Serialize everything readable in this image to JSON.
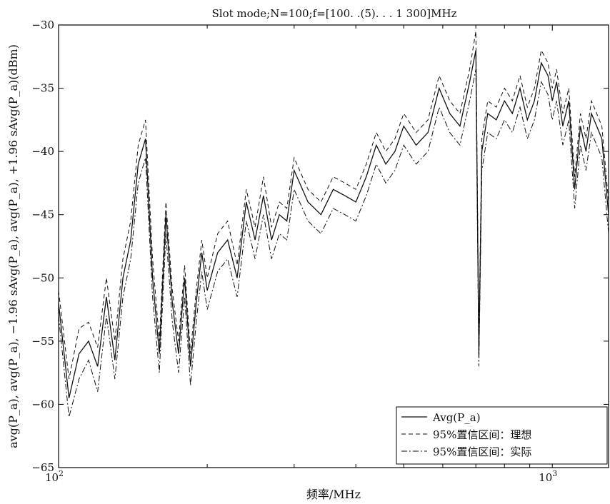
{
  "chart_data": {
    "type": "line",
    "title": "Slot mode;N=100;f=[100. .(5). . . 1 300]MHz",
    "xlabel": "频率/MHz",
    "ylabel": "avg(P_a), avg(P_a), −1.96 sAvg(P_a), avg(P_a), +1.96 sAvg(P_a)(dBm)",
    "xscale": "log",
    "xlim": [
      100,
      1300
    ],
    "ylim": [
      -65,
      -30
    ],
    "x_ticks": [
      {
        "value": 100,
        "base": "10",
        "exp": "2"
      },
      {
        "value": 1000,
        "base": "10",
        "exp": "3"
      }
    ],
    "y_ticks": [
      -30,
      -35,
      -40,
      -45,
      -50,
      -55,
      -60,
      -65
    ],
    "x": [
      100,
      105,
      110,
      115,
      120,
      125,
      130,
      135,
      140,
      145,
      150,
      155,
      160,
      165,
      170,
      175,
      180,
      185,
      190,
      195,
      200,
      210,
      220,
      230,
      240,
      250,
      260,
      270,
      280,
      290,
      300,
      320,
      340,
      360,
      380,
      400,
      420,
      440,
      460,
      480,
      500,
      530,
      560,
      590,
      620,
      650,
      680,
      700,
      710,
      720,
      740,
      770,
      800,
      830,
      860,
      890,
      920,
      950,
      980,
      1000,
      1020,
      1050,
      1080,
      1110,
      1140,
      1170,
      1200,
      1230,
      1260,
      1300
    ],
    "series": [
      {
        "name": "Avg(P_a)",
        "style": "solid",
        "values": [
          -52,
          -59.5,
          -56,
          -55,
          -57,
          -51.5,
          -56.5,
          -50,
          -47,
          -41,
          -39,
          -50,
          -56,
          -45,
          -52,
          -56,
          -50,
          -57,
          -52,
          -48,
          -51,
          -48,
          -47,
          -50,
          -44,
          -47,
          -43.5,
          -47,
          -45,
          -45.5,
          -41.5,
          -44,
          -45,
          -43,
          -43.5,
          -44,
          -42,
          -39.5,
          -41,
          -40,
          -38,
          -39.5,
          -38.5,
          -35,
          -37,
          -38,
          -34.5,
          -32,
          -56,
          -40,
          -37,
          -37.5,
          -36,
          -37,
          -35,
          -37.5,
          -36,
          -33,
          -34,
          -36,
          -34.5,
          -38,
          -36,
          -43,
          -38,
          -40,
          -37,
          -38,
          -39,
          -45
        ]
      },
      {
        "name": "95%置信区间：理想",
        "style": "dashed",
        "values": [
          -51,
          -58,
          -54,
          -53.5,
          -55.5,
          -50,
          -55,
          -48.5,
          -45.5,
          -39.5,
          -37.5,
          -48.5,
          -55,
          -44,
          -51,
          -55,
          -49,
          -56,
          -51,
          -47,
          -50,
          -46.5,
          -45.5,
          -49,
          -43,
          -46,
          -42,
          -46,
          -44,
          -44.5,
          -40.5,
          -43,
          -44,
          -42,
          -42.5,
          -43,
          -41,
          -38.5,
          -40,
          -39,
          -37,
          -38.5,
          -37.5,
          -34,
          -36,
          -37,
          -33.5,
          -30.5,
          -55,
          -39,
          -36,
          -36.5,
          -35,
          -36,
          -34,
          -36.5,
          -35,
          -32,
          -33,
          -35,
          -33.5,
          -37,
          -35,
          -42,
          -37,
          -39,
          -36,
          -37,
          -38,
          -44
        ]
      },
      {
        "name": "95%置信区间：实际",
        "style": "dashdot",
        "values": [
          -53,
          -61,
          -58,
          -56.5,
          -59,
          -53,
          -58,
          -51.5,
          -48.5,
          -42.5,
          -40.5,
          -51.5,
          -57.5,
          -46.5,
          -53.5,
          -57.5,
          -51.5,
          -58.5,
          -53.5,
          -49.5,
          -52.5,
          -49.5,
          -48.5,
          -51.5,
          -45.5,
          -48.5,
          -45,
          -48.5,
          -46.5,
          -47,
          -43,
          -45.5,
          -46.5,
          -44.5,
          -45,
          -45.5,
          -43.5,
          -41,
          -42.5,
          -41.5,
          -39.5,
          -41,
          -40,
          -36.5,
          -38.5,
          -39.5,
          -36,
          -33.5,
          -57,
          -41.5,
          -38.5,
          -39,
          -37.5,
          -38.5,
          -36.5,
          -39,
          -37.5,
          -34.5,
          -35.5,
          -37.5,
          -36,
          -39.5,
          -37.5,
          -44.5,
          -39.5,
          -41.5,
          -38.5,
          -39.5,
          -40.5,
          -46.5
        ]
      }
    ],
    "legend": {
      "position": "bottom-right",
      "entries": [
        "Avg(P_a)",
        "95%置信区间：理想",
        "95%置信区间：实际"
      ]
    },
    "grid": false
  }
}
